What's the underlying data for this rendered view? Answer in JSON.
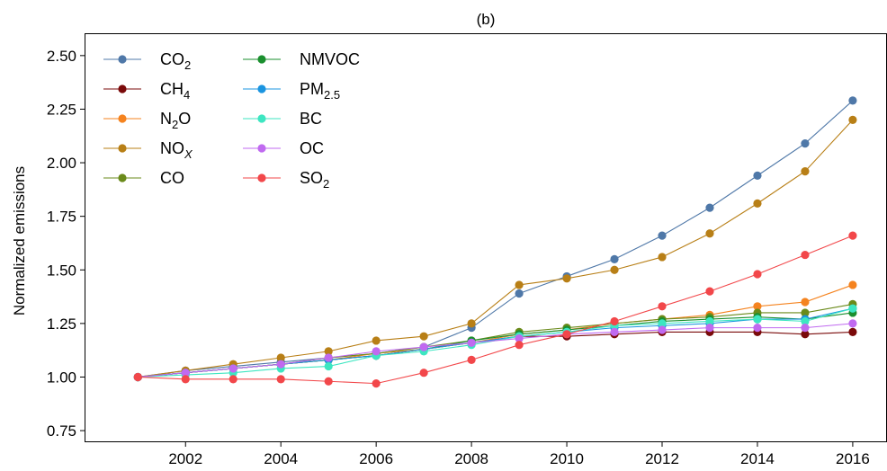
{
  "chart_data": {
    "type": "line",
    "title": "(b)",
    "xlabel": "",
    "ylabel": "Normalized emissions",
    "xlim": [
      1999.9,
      2016.7
    ],
    "ylim": [
      0.7,
      2.6
    ],
    "x": [
      2001,
      2002,
      2003,
      2004,
      2005,
      2006,
      2007,
      2008,
      2009,
      2010,
      2011,
      2012,
      2013,
      2014,
      2015,
      2016
    ],
    "xticks": [
      "2002",
      "2004",
      "2006",
      "2008",
      "2010",
      "2012",
      "2014",
      "2016"
    ],
    "yticks": [
      "0.75",
      "1.00",
      "1.25",
      "1.50",
      "1.75",
      "2.00",
      "2.25",
      "2.50"
    ],
    "grid": false,
    "legend_placement": "top-left",
    "series": [
      {
        "name": "CO",
        "sub": "2",
        "sub_style": "normal",
        "color": "#4f78a8",
        "values": [
          1.0,
          1.03,
          1.05,
          1.07,
          1.09,
          1.11,
          1.14,
          1.23,
          1.39,
          1.47,
          1.55,
          1.66,
          1.79,
          1.94,
          2.09,
          2.29
        ]
      },
      {
        "name": "CH",
        "sub": "4",
        "sub_style": "normal",
        "color": "#7a0a0a",
        "values": [
          1.0,
          1.02,
          1.04,
          1.06,
          1.08,
          1.1,
          1.13,
          1.16,
          1.19,
          1.19,
          1.2,
          1.21,
          1.21,
          1.21,
          1.2,
          1.21
        ]
      },
      {
        "name": "N",
        "sub": "2",
        "suffix": "O",
        "sub_style": "normal",
        "color": "#f5831f",
        "values": [
          1.0,
          1.02,
          1.04,
          1.06,
          1.08,
          1.11,
          1.13,
          1.16,
          1.2,
          1.22,
          1.25,
          1.27,
          1.29,
          1.33,
          1.35,
          1.43
        ]
      },
      {
        "name": "NO",
        "sub": "X",
        "sub_style": "italic",
        "color": "#b87f16",
        "values": [
          1.0,
          1.03,
          1.06,
          1.09,
          1.12,
          1.17,
          1.19,
          1.25,
          1.43,
          1.46,
          1.5,
          1.56,
          1.67,
          1.81,
          1.96,
          2.2
        ]
      },
      {
        "name": "CO",
        "sub": "",
        "sub_style": "normal",
        "color": "#6a8a1a",
        "values": [
          1.0,
          1.02,
          1.04,
          1.06,
          1.09,
          1.11,
          1.14,
          1.17,
          1.21,
          1.23,
          1.25,
          1.27,
          1.28,
          1.3,
          1.3,
          1.34
        ]
      },
      {
        "name": "NMVOC",
        "sub": "",
        "sub_style": "normal",
        "color": "#1a8f2e",
        "values": [
          1.0,
          1.02,
          1.04,
          1.06,
          1.08,
          1.1,
          1.13,
          1.17,
          1.2,
          1.22,
          1.24,
          1.26,
          1.27,
          1.28,
          1.27,
          1.3
        ]
      },
      {
        "name": "PM",
        "sub": "2.5",
        "sub_style": "normal",
        "color": "#1a94e0",
        "values": [
          1.0,
          1.02,
          1.04,
          1.06,
          1.08,
          1.1,
          1.13,
          1.16,
          1.19,
          1.21,
          1.23,
          1.24,
          1.25,
          1.27,
          1.27,
          1.32
        ]
      },
      {
        "name": "BC",
        "sub": "",
        "sub_style": "normal",
        "color": "#3de6c1",
        "values": [
          1.0,
          1.01,
          1.02,
          1.04,
          1.05,
          1.1,
          1.12,
          1.15,
          1.19,
          1.21,
          1.24,
          1.25,
          1.26,
          1.27,
          1.26,
          1.32
        ]
      },
      {
        "name": "OC",
        "sub": "",
        "sub_style": "normal",
        "color": "#c06af0",
        "values": [
          1.0,
          1.02,
          1.04,
          1.06,
          1.09,
          1.12,
          1.14,
          1.16,
          1.18,
          1.2,
          1.21,
          1.22,
          1.23,
          1.23,
          1.23,
          1.25
        ]
      },
      {
        "name": "SO",
        "sub": "2",
        "sub_style": "normal",
        "color": "#f2474a",
        "values": [
          1.0,
          0.99,
          0.99,
          0.99,
          0.98,
          0.97,
          1.02,
          1.08,
          1.15,
          1.2,
          1.26,
          1.33,
          1.4,
          1.48,
          1.57,
          1.66
        ]
      }
    ]
  }
}
